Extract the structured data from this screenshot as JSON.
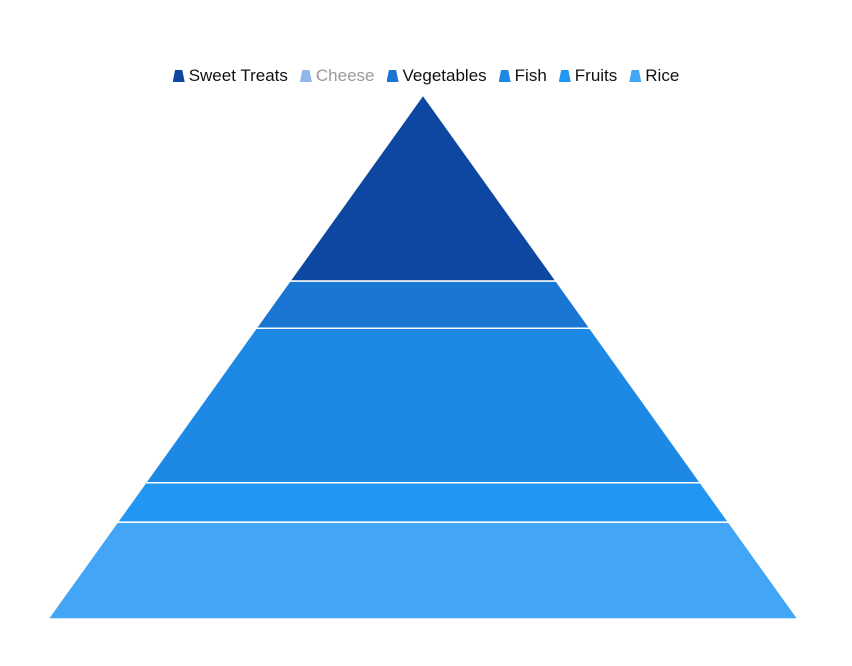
{
  "chart_data": {
    "type": "pyramid",
    "title": "",
    "categories": [
      "Rice",
      "Fruits",
      "Fish",
      "Vegetables",
      "Cheese",
      "Sweet Treats"
    ],
    "values": [
      18.5,
      7.5,
      29.5,
      9.0,
      0,
      35.5
    ],
    "value_unit": "percent of pyramid height",
    "hidden": [
      "Cheese"
    ],
    "colors": {
      "Sweet Treats": "#0d47a1",
      "Cheese": "#90b7e8",
      "Vegetables": "#1976d2",
      "Fish": "#1e88e5",
      "Fruits": "#2196f3",
      "Rice": "#42a5f5"
    },
    "legend": {
      "position": "top",
      "items": [
        "Sweet Treats",
        "Cheese",
        "Vegetables",
        "Fish",
        "Fruits",
        "Rice"
      ]
    }
  }
}
